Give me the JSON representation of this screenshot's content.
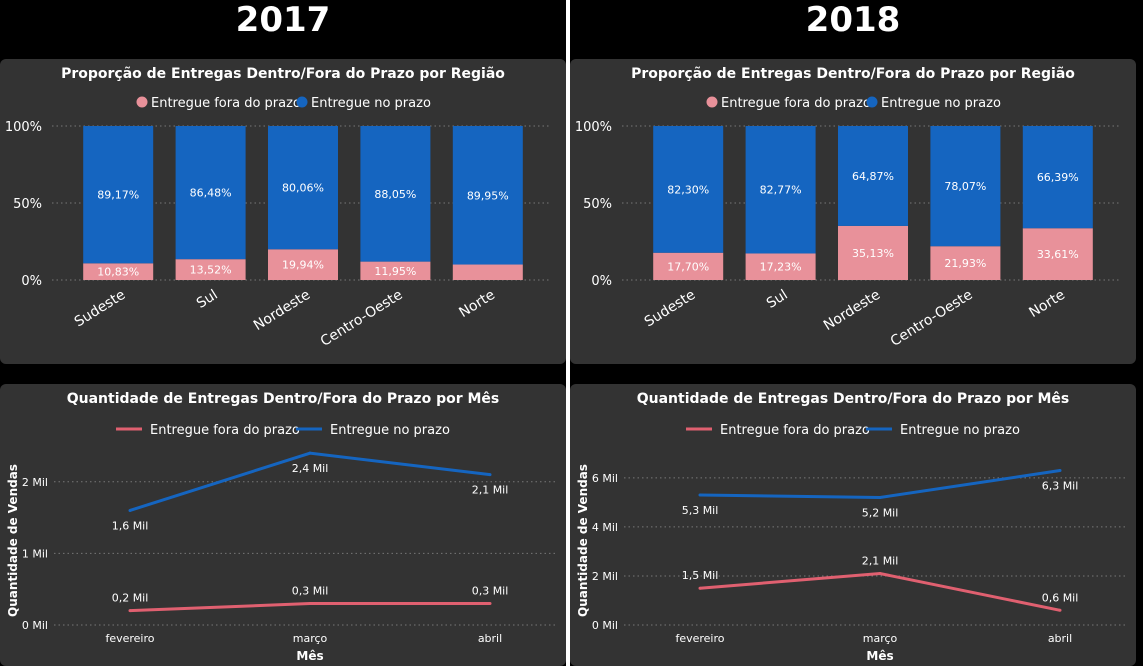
{
  "colors": {
    "late": "#E8919A",
    "ontime": "#1565C0",
    "late_line": "#E06070",
    "ontime_line": "#1565C0"
  },
  "panels": [
    {
      "year": "2017",
      "bar_title": "Proporção de Entregas Dentro/Fora do Prazo por Região",
      "line_title": "Quantidade de Entregas Dentro/Fora do Prazo por Mês"
    },
    {
      "year": "2018",
      "bar_title": "Proporção de Entregas Dentro/Fora do Prazo por Região",
      "line_title": "Quantidade de Entregas Dentro/Fora do Prazo por Mês"
    }
  ],
  "chart_data": [
    {
      "type": "bar",
      "stacked": "100%",
      "title": "Proporção de Entregas Dentro/Fora do Prazo por Região",
      "categories": [
        "Sudeste",
        "Sul",
        "Nordeste",
        "Centro-Oeste",
        "Norte"
      ],
      "series": [
        {
          "name": "Entregue fora do prazo",
          "values": [
            10.83,
            13.52,
            19.94,
            11.95,
            10.05
          ],
          "labels": [
            "10,83%",
            "13,52%",
            "19,94%",
            "11,95%",
            ""
          ]
        },
        {
          "name": "Entregue no prazo",
          "values": [
            89.17,
            86.48,
            80.06,
            88.05,
            89.95
          ],
          "labels": [
            "89,17%",
            "86,48%",
            "80,06%",
            "88,05%",
            "89,95%"
          ]
        }
      ],
      "yticks": [
        "0%",
        "50%",
        "100%"
      ],
      "ylim": [
        0,
        100
      ],
      "legend": "top-center"
    },
    {
      "type": "line",
      "title": "Quantidade de Entregas Dentro/Fora do Prazo por Mês",
      "categories": [
        "fevereiro",
        "março",
        "abril"
      ],
      "series": [
        {
          "name": "Entregue fora do prazo",
          "values": [
            0.2,
            0.3,
            0.3
          ],
          "labels": [
            "0,2 Mil",
            "0,3 Mil",
            "0,3 Mil"
          ]
        },
        {
          "name": "Entregue no prazo",
          "values": [
            1.6,
            2.4,
            2.1
          ],
          "labels": [
            "1,6 Mil",
            "2,4 Mil",
            "2,1 Mil"
          ]
        }
      ],
      "xlabel": "Mês",
      "ylabel": "Quantidade de Vendas",
      "ylim": [
        0,
        2.5
      ],
      "yticks": [
        {
          "v": 0,
          "t": "0 Mil"
        },
        {
          "v": 1,
          "t": "1 Mil"
        },
        {
          "v": 2,
          "t": "2 Mil"
        }
      ],
      "legend": "top-center"
    },
    {
      "type": "bar",
      "stacked": "100%",
      "title": "Proporção de Entregas Dentro/Fora do Prazo por Região",
      "categories": [
        "Sudeste",
        "Sul",
        "Nordeste",
        "Centro-Oeste",
        "Norte"
      ],
      "series": [
        {
          "name": "Entregue fora do prazo",
          "values": [
            17.7,
            17.23,
            35.13,
            21.93,
            33.61
          ],
          "labels": [
            "17,70%",
            "17,23%",
            "35,13%",
            "21,93%",
            "33,61%"
          ]
        },
        {
          "name": "Entregue no prazo",
          "values": [
            82.3,
            82.77,
            64.87,
            78.07,
            66.39
          ],
          "labels": [
            "82,30%",
            "82,77%",
            "64,87%",
            "78,07%",
            "66,39%"
          ]
        }
      ],
      "yticks": [
        "0%",
        "50%",
        "100%"
      ],
      "ylim": [
        0,
        100
      ],
      "legend": "top-center"
    },
    {
      "type": "line",
      "title": "Quantidade de Entregas Dentro/Fora do Prazo por Mês",
      "categories": [
        "fevereiro",
        "março",
        "abril"
      ],
      "series": [
        {
          "name": "Entregue fora do prazo",
          "values": [
            1.5,
            2.1,
            0.6
          ],
          "labels": [
            "1,5 Mil",
            "2,1 Mil",
            "0,6 Mil"
          ]
        },
        {
          "name": "Entregue no prazo",
          "values": [
            5.3,
            5.2,
            6.3
          ],
          "labels": [
            "5,3 Mil",
            "5,2 Mil",
            "6,3 Mil"
          ]
        }
      ],
      "xlabel": "Mês",
      "ylabel": "Quantidade de Vendas",
      "ylim": [
        0,
        7.3
      ],
      "yticks": [
        {
          "v": 0,
          "t": "0 Mil"
        },
        {
          "v": 2,
          "t": "2 Mil"
        },
        {
          "v": 4,
          "t": "4 Mil"
        },
        {
          "v": 6,
          "t": "6 Mil"
        }
      ],
      "legend": "top-center"
    }
  ]
}
